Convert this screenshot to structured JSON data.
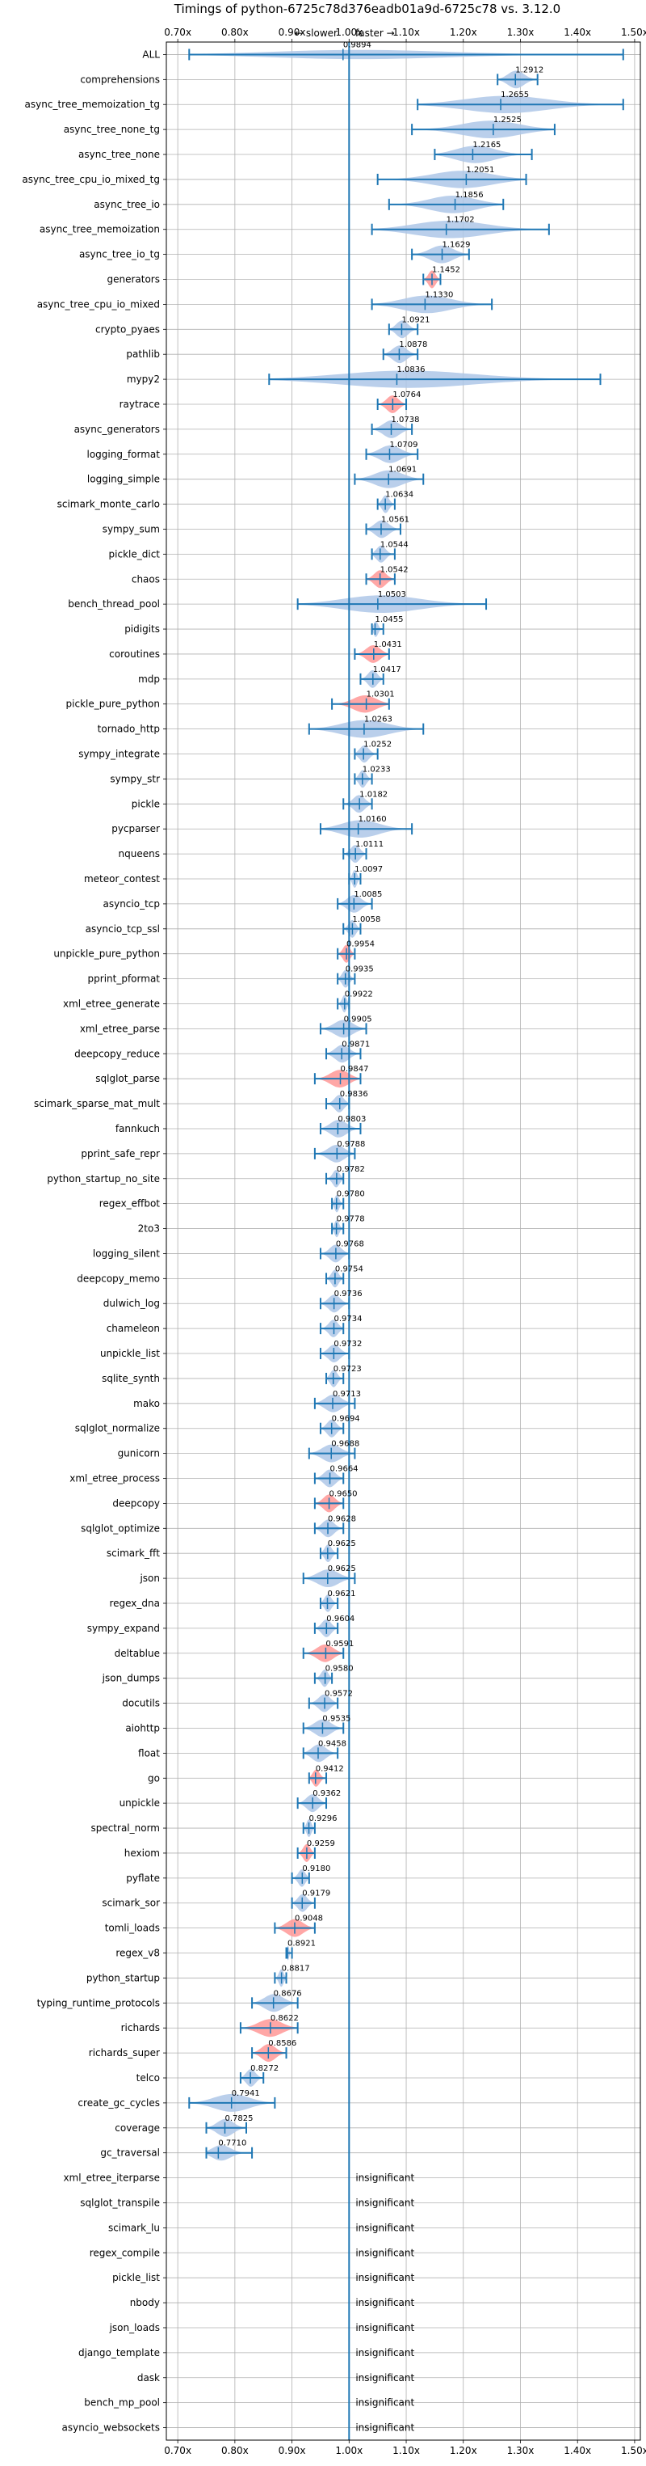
{
  "chart_data": {
    "type": "violin",
    "title": "Timings of python-6725c78d376eadb01a9d-6725c78 vs. 3.12.0",
    "direction_slower": "← slower",
    "direction_faster": "faster →",
    "x_ticks": [
      "0.70x",
      "0.80x",
      "0.90x",
      "1.00x",
      "1.10x",
      "1.20x",
      "1.30x",
      "1.40x",
      "1.50x"
    ],
    "x_tick_values": [
      0.7,
      0.8,
      0.9,
      1.0,
      1.1,
      1.2,
      1.3,
      1.4,
      1.5
    ],
    "xlim": [
      0.68,
      1.51
    ],
    "grid": true,
    "colors": {
      "normal": "#1f77b4",
      "fill_normal": "#aec7e8",
      "fill_highlight": "#ff9896",
      "axis": "#000000"
    },
    "insignificant_label": "insignificant",
    "benchmarks": [
      {
        "name": "ALL",
        "value": 0.9894,
        "low": 0.72,
        "high": 1.48,
        "highlight": false
      },
      {
        "name": "comprehensions",
        "value": 1.2912,
        "low": 1.26,
        "high": 1.33,
        "highlight": false
      },
      {
        "name": "async_tree_memoization_tg",
        "value": 1.2655,
        "low": 1.12,
        "high": 1.48,
        "highlight": false
      },
      {
        "name": "async_tree_none_tg",
        "value": 1.2525,
        "low": 1.11,
        "high": 1.36,
        "highlight": false
      },
      {
        "name": "async_tree_none",
        "value": 1.2165,
        "low": 1.15,
        "high": 1.32,
        "highlight": false
      },
      {
        "name": "async_tree_cpu_io_mixed_tg",
        "value": 1.2051,
        "low": 1.05,
        "high": 1.31,
        "highlight": false
      },
      {
        "name": "async_tree_io",
        "value": 1.1856,
        "low": 1.07,
        "high": 1.27,
        "highlight": false
      },
      {
        "name": "async_tree_memoization",
        "value": 1.1702,
        "low": 1.04,
        "high": 1.35,
        "highlight": false
      },
      {
        "name": "async_tree_io_tg",
        "value": 1.1629,
        "low": 1.11,
        "high": 1.21,
        "highlight": false
      },
      {
        "name": "generators",
        "value": 1.1452,
        "low": 1.13,
        "high": 1.16,
        "highlight": true
      },
      {
        "name": "async_tree_cpu_io_mixed",
        "value": 1.133,
        "low": 1.04,
        "high": 1.25,
        "highlight": false
      },
      {
        "name": "crypto_pyaes",
        "value": 1.0921,
        "low": 1.07,
        "high": 1.12,
        "highlight": false
      },
      {
        "name": "pathlib",
        "value": 1.0878,
        "low": 1.06,
        "high": 1.12,
        "highlight": false
      },
      {
        "name": "mypy2",
        "value": 1.0836,
        "low": 0.86,
        "high": 1.44,
        "highlight": false
      },
      {
        "name": "raytrace",
        "value": 1.0764,
        "low": 1.05,
        "high": 1.1,
        "highlight": true
      },
      {
        "name": "async_generators",
        "value": 1.0738,
        "low": 1.04,
        "high": 1.11,
        "highlight": false
      },
      {
        "name": "logging_format",
        "value": 1.0709,
        "low": 1.03,
        "high": 1.12,
        "highlight": false
      },
      {
        "name": "logging_simple",
        "value": 1.0691,
        "low": 1.01,
        "high": 1.13,
        "highlight": false
      },
      {
        "name": "scimark_monte_carlo",
        "value": 1.0634,
        "low": 1.05,
        "high": 1.08,
        "highlight": false
      },
      {
        "name": "sympy_sum",
        "value": 1.0561,
        "low": 1.03,
        "high": 1.09,
        "highlight": false
      },
      {
        "name": "pickle_dict",
        "value": 1.0544,
        "low": 1.04,
        "high": 1.08,
        "highlight": false
      },
      {
        "name": "chaos",
        "value": 1.0542,
        "low": 1.03,
        "high": 1.08,
        "highlight": true
      },
      {
        "name": "bench_thread_pool",
        "value": 1.0503,
        "low": 0.91,
        "high": 1.24,
        "highlight": false
      },
      {
        "name": "pidigits",
        "value": 1.0455,
        "low": 1.04,
        "high": 1.06,
        "highlight": false
      },
      {
        "name": "coroutines",
        "value": 1.0431,
        "low": 1.01,
        "high": 1.07,
        "highlight": true
      },
      {
        "name": "mdp",
        "value": 1.0417,
        "low": 1.02,
        "high": 1.06,
        "highlight": false
      },
      {
        "name": "pickle_pure_python",
        "value": 1.0301,
        "low": 0.97,
        "high": 1.07,
        "highlight": true
      },
      {
        "name": "tornado_http",
        "value": 1.0263,
        "low": 0.93,
        "high": 1.13,
        "highlight": false
      },
      {
        "name": "sympy_integrate",
        "value": 1.0252,
        "low": 1.01,
        "high": 1.05,
        "highlight": false
      },
      {
        "name": "sympy_str",
        "value": 1.0233,
        "low": 1.01,
        "high": 1.04,
        "highlight": false
      },
      {
        "name": "pickle",
        "value": 1.0182,
        "low": 0.99,
        "high": 1.04,
        "highlight": false
      },
      {
        "name": "pycparser",
        "value": 1.016,
        "low": 0.95,
        "high": 1.11,
        "highlight": false
      },
      {
        "name": "nqueens",
        "value": 1.0111,
        "low": 0.99,
        "high": 1.03,
        "highlight": false
      },
      {
        "name": "meteor_contest",
        "value": 1.0097,
        "low": 1.0,
        "high": 1.02,
        "highlight": false
      },
      {
        "name": "asyncio_tcp",
        "value": 1.0085,
        "low": 0.98,
        "high": 1.04,
        "highlight": false
      },
      {
        "name": "asyncio_tcp_ssl",
        "value": 1.0058,
        "low": 0.99,
        "high": 1.02,
        "highlight": false
      },
      {
        "name": "unpickle_pure_python",
        "value": 0.9954,
        "low": 0.98,
        "high": 1.01,
        "highlight": true
      },
      {
        "name": "pprint_pformat",
        "value": 0.9935,
        "low": 0.98,
        "high": 1.01,
        "highlight": false
      },
      {
        "name": "xml_etree_generate",
        "value": 0.9922,
        "low": 0.98,
        "high": 1.0,
        "highlight": false
      },
      {
        "name": "xml_etree_parse",
        "value": 0.9905,
        "low": 0.95,
        "high": 1.03,
        "highlight": false
      },
      {
        "name": "deepcopy_reduce",
        "value": 0.9871,
        "low": 0.96,
        "high": 1.02,
        "highlight": false
      },
      {
        "name": "sqlglot_parse",
        "value": 0.9847,
        "low": 0.94,
        "high": 1.02,
        "highlight": true
      },
      {
        "name": "scimark_sparse_mat_mult",
        "value": 0.9836,
        "low": 0.96,
        "high": 1.0,
        "highlight": false
      },
      {
        "name": "fannkuch",
        "value": 0.9803,
        "low": 0.95,
        "high": 1.02,
        "highlight": false
      },
      {
        "name": "pprint_safe_repr",
        "value": 0.9788,
        "low": 0.94,
        "high": 1.01,
        "highlight": false
      },
      {
        "name": "python_startup_no_site",
        "value": 0.9782,
        "low": 0.96,
        "high": 0.99,
        "highlight": false
      },
      {
        "name": "regex_effbot",
        "value": 0.978,
        "low": 0.97,
        "high": 0.99,
        "highlight": false
      },
      {
        "name": "2to3",
        "value": 0.9778,
        "low": 0.97,
        "high": 0.99,
        "highlight": false
      },
      {
        "name": "logging_silent",
        "value": 0.9768,
        "low": 0.95,
        "high": 1.0,
        "highlight": false
      },
      {
        "name": "deepcopy_memo",
        "value": 0.9754,
        "low": 0.96,
        "high": 0.99,
        "highlight": false
      },
      {
        "name": "dulwich_log",
        "value": 0.9736,
        "low": 0.95,
        "high": 1.0,
        "highlight": false
      },
      {
        "name": "chameleon",
        "value": 0.9734,
        "low": 0.95,
        "high": 0.99,
        "highlight": false
      },
      {
        "name": "unpickle_list",
        "value": 0.9732,
        "low": 0.95,
        "high": 1.0,
        "highlight": false
      },
      {
        "name": "sqlite_synth",
        "value": 0.9723,
        "low": 0.96,
        "high": 0.99,
        "highlight": false
      },
      {
        "name": "mako",
        "value": 0.9713,
        "low": 0.94,
        "high": 1.01,
        "highlight": false
      },
      {
        "name": "sqlglot_normalize",
        "value": 0.9694,
        "low": 0.95,
        "high": 0.99,
        "highlight": false
      },
      {
        "name": "gunicorn",
        "value": 0.9688,
        "low": 0.93,
        "high": 1.01,
        "highlight": false
      },
      {
        "name": "xml_etree_process",
        "value": 0.9664,
        "low": 0.94,
        "high": 0.99,
        "highlight": false
      },
      {
        "name": "deepcopy",
        "value": 0.965,
        "low": 0.94,
        "high": 0.99,
        "highlight": true
      },
      {
        "name": "sqlglot_optimize",
        "value": 0.9628,
        "low": 0.94,
        "high": 0.99,
        "highlight": false
      },
      {
        "name": "scimark_fft",
        "value": 0.9625,
        "low": 0.95,
        "high": 0.98,
        "highlight": false
      },
      {
        "name": "json",
        "value": 0.9625,
        "low": 0.92,
        "high": 1.01,
        "highlight": false
      },
      {
        "name": "regex_dna",
        "value": 0.9621,
        "low": 0.95,
        "high": 0.98,
        "highlight": false
      },
      {
        "name": "sympy_expand",
        "value": 0.9604,
        "low": 0.94,
        "high": 0.98,
        "highlight": false
      },
      {
        "name": "deltablue",
        "value": 0.9591,
        "low": 0.92,
        "high": 0.99,
        "highlight": true
      },
      {
        "name": "json_dumps",
        "value": 0.958,
        "low": 0.94,
        "high": 0.97,
        "highlight": false
      },
      {
        "name": "docutils",
        "value": 0.9572,
        "low": 0.93,
        "high": 0.98,
        "highlight": false
      },
      {
        "name": "aiohttp",
        "value": 0.9535,
        "low": 0.92,
        "high": 0.99,
        "highlight": false
      },
      {
        "name": "float",
        "value": 0.9458,
        "low": 0.92,
        "high": 0.98,
        "highlight": false
      },
      {
        "name": "go",
        "value": 0.9412,
        "low": 0.93,
        "high": 0.96,
        "highlight": true
      },
      {
        "name": "unpickle",
        "value": 0.9362,
        "low": 0.91,
        "high": 0.96,
        "highlight": false
      },
      {
        "name": "spectral_norm",
        "value": 0.9296,
        "low": 0.92,
        "high": 0.94,
        "highlight": false
      },
      {
        "name": "hexiom",
        "value": 0.9259,
        "low": 0.91,
        "high": 0.94,
        "highlight": true
      },
      {
        "name": "pyflate",
        "value": 0.918,
        "low": 0.9,
        "high": 0.93,
        "highlight": false
      },
      {
        "name": "scimark_sor",
        "value": 0.9179,
        "low": 0.9,
        "high": 0.94,
        "highlight": false
      },
      {
        "name": "tomli_loads",
        "value": 0.9048,
        "low": 0.87,
        "high": 0.94,
        "highlight": true
      },
      {
        "name": "regex_v8",
        "value": 0.8921,
        "low": 0.89,
        "high": 0.9,
        "highlight": false
      },
      {
        "name": "python_startup",
        "value": 0.8817,
        "low": 0.87,
        "high": 0.89,
        "highlight": false
      },
      {
        "name": "typing_runtime_protocols",
        "value": 0.8676,
        "low": 0.83,
        "high": 0.91,
        "highlight": false
      },
      {
        "name": "richards",
        "value": 0.8622,
        "low": 0.81,
        "high": 0.91,
        "highlight": true
      },
      {
        "name": "richards_super",
        "value": 0.8586,
        "low": 0.83,
        "high": 0.89,
        "highlight": true
      },
      {
        "name": "telco",
        "value": 0.8272,
        "low": 0.81,
        "high": 0.85,
        "highlight": false
      },
      {
        "name": "create_gc_cycles",
        "value": 0.7941,
        "low": 0.72,
        "high": 0.87,
        "highlight": false
      },
      {
        "name": "coverage",
        "value": 0.7825,
        "low": 0.75,
        "high": 0.82,
        "highlight": false
      },
      {
        "name": "gc_traversal",
        "value": 0.771,
        "low": 0.75,
        "high": 0.83,
        "highlight": false
      },
      {
        "name": "xml_etree_iterparse",
        "insignificant": true
      },
      {
        "name": "sqlglot_transpile",
        "insignificant": true
      },
      {
        "name": "scimark_lu",
        "insignificant": true
      },
      {
        "name": "regex_compile",
        "insignificant": true
      },
      {
        "name": "pickle_list",
        "insignificant": true
      },
      {
        "name": "nbody",
        "insignificant": true
      },
      {
        "name": "json_loads",
        "insignificant": true
      },
      {
        "name": "django_template",
        "insignificant": true
      },
      {
        "name": "dask",
        "insignificant": true
      },
      {
        "name": "bench_mp_pool",
        "insignificant": true
      },
      {
        "name": "asyncio_websockets",
        "insignificant": true
      }
    ]
  }
}
